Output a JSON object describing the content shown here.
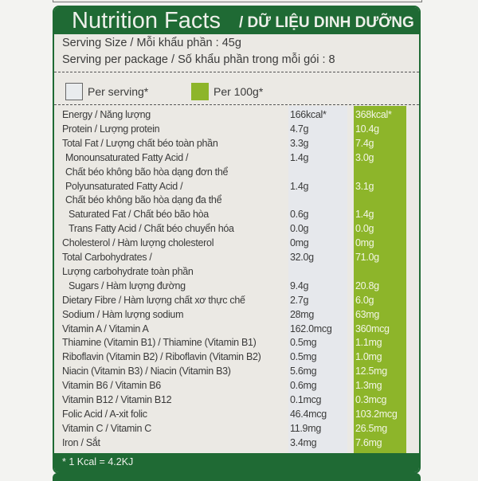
{
  "header": {
    "title_en": "Nutrition Facts",
    "title_vi": "/ DỮ LIỆU DINH DƯỠNG"
  },
  "serving": {
    "size": "Serving Size / Mỗi khẩu phần : 45g",
    "per_package": "Serving per package / Số khẩu phần trong mỗi gói : 8"
  },
  "legend": {
    "per_serving": "Per serving*",
    "per_100g": "Per 100g*"
  },
  "colors": {
    "dark_green": "#1f6a34",
    "lime_green": "#8db52a"
  },
  "rows": [
    {
      "label": "Energy / Năng lượng",
      "serving": "166kcal*",
      "per100": "368kcal*"
    },
    {
      "label": "Protein / Lượng protein",
      "serving": "4.7g",
      "per100": "10.4g"
    },
    {
      "label": "Total Fat / Lượng chất béo toàn phần",
      "serving": "3.3g",
      "per100": "7.4g"
    },
    {
      "label": " Monounsaturated Fatty Acid /",
      "serving": "1.4g",
      "per100": "3.0g"
    },
    {
      "label": " Chất béo không bão hòa dạng đơn thể",
      "serving": "",
      "per100": ""
    },
    {
      "label": " Polyunsaturated Fatty Acid /",
      "serving": "1.4g",
      "per100": "3.1g"
    },
    {
      "label": " Chất béo không bão hòa dạng đa thể",
      "serving": "",
      "per100": ""
    },
    {
      "label": "  Saturated Fat / Chất béo bão hòa",
      "serving": "0.6g",
      "per100": "1.4g"
    },
    {
      "label": "  Trans Fatty Acid / Chất béo chuyển hóa",
      "serving": "0.0g",
      "per100": "0.0g"
    },
    {
      "label": "Cholesterol / Hàm lượng cholesterol",
      "serving": "0mg",
      "per100": "0mg"
    },
    {
      "label": "Total Carbohydrates /",
      "serving": "32.0g",
      "per100": "71.0g"
    },
    {
      "label": "Lượng carbohydrate toàn phần",
      "serving": "",
      "per100": ""
    },
    {
      "label": "  Sugars / Hàm lượng đường",
      "serving": "9.4g",
      "per100": "20.8g"
    },
    {
      "label": "Dietary Fibre / Hàm lượng chất xơ thực chế",
      "serving": "2.7g",
      "per100": "6.0g"
    },
    {
      "label": "Sodium / Hàm lượng sodium",
      "serving": "28mg",
      "per100": "63mg"
    },
    {
      "label": "Vitamin A / Vitamin A",
      "serving": "162.0mcg",
      "per100": "360mcg"
    },
    {
      "label": "Thiamine (Vitamin B1) / Thiamine (Vitamin B1)",
      "serving": "0.5mg",
      "per100": "1.1mg"
    },
    {
      "label": "Riboflavin (Vitamin B2) / Riboflavin (Vitamin B2)",
      "serving": "0.5mg",
      "per100": "1.0mg"
    },
    {
      "label": "Niacin (Vitamin B3) / Niacin (Vitamin B3)",
      "serving": "5.6mg",
      "per100": "12.5mg"
    },
    {
      "label": "Vitamin B6 / Vitamin B6",
      "serving": "0.6mg",
      "per100": "1.3mg"
    },
    {
      "label": "Vitamin B12 / Vitamin B12",
      "serving": "0.1mcg",
      "per100": "0.3mcg"
    },
    {
      "label": "Folic Acid / A-xit folic",
      "serving": "46.4mcg",
      "per100": "103.2mcg"
    },
    {
      "label": "Vitamin C / Vitamin C",
      "serving": "11.9mg",
      "per100": "26.5mg"
    },
    {
      "label": "Iron / Sắt",
      "serving": "3.4mg",
      "per100": "7.6mg"
    }
  ],
  "footer": {
    "note": "* 1 Kcal = 4.2KJ"
  }
}
